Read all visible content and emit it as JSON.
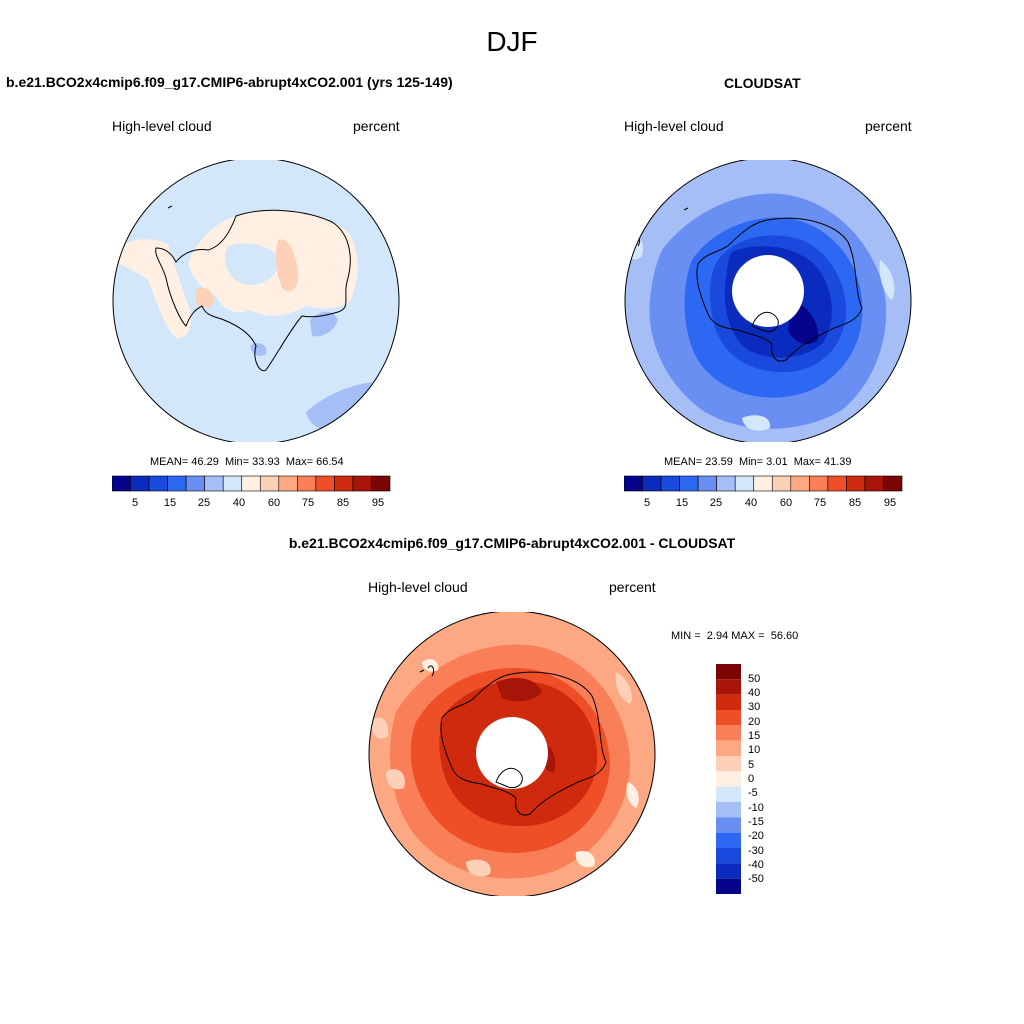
{
  "season": "DJF",
  "colors": {
    "abs_scale": [
      "#04058a",
      "#0b2bbe",
      "#1a49dd",
      "#2d68f2",
      "#6a8ff3",
      "#a5bff6",
      "#d3e7fb",
      "#fff0e3",
      "#fdd0b8",
      "#fba883",
      "#f97f59",
      "#ef4f27",
      "#cf2a0d",
      "#a71509",
      "#7a0503"
    ],
    "diff_scale": [
      "#04058a",
      "#0b2bbe",
      "#1a49dd",
      "#2d68f2",
      "#6a8ff3",
      "#a5bff6",
      "#d3e7fb",
      "#fff0e3",
      "#fdd0b8",
      "#fba883",
      "#f97f59",
      "#ef4f27",
      "#cf2a0d",
      "#a71509",
      "#7a0503"
    ]
  },
  "panels": {
    "model": {
      "title": "b.e21.BCO2x4cmip6.f09_g17.CMIP6-abrupt4xCO2.001 (yrs 125-149)",
      "left_label": "High-level cloud",
      "right_label": "percent",
      "mean_label": "MEAN=",
      "mean": "46.29",
      "min_label": "Min=",
      "min": "33.93",
      "max_label": "Max=",
      "max": "66.54",
      "colorbar_ticks": [
        "5",
        "15",
        "25",
        "40",
        "60",
        "75",
        "85",
        "95"
      ]
    },
    "obs": {
      "title": "CLOUDSAT",
      "left_label": "High-level cloud",
      "right_label": "percent",
      "mean_label": "MEAN=",
      "mean": "23.59",
      "min_label": "Min=",
      "min": "3.01",
      "max_label": "Max=",
      "max": "41.39",
      "colorbar_ticks": [
        "5",
        "15",
        "25",
        "40",
        "60",
        "75",
        "85",
        "95"
      ]
    },
    "diff": {
      "title": "b.e21.BCO2x4cmip6.f09_g17.CMIP6-abrupt4xCO2.001 - CLOUDSAT",
      "left_label": "High-level cloud",
      "right_label": "percent",
      "min_label": "MIN =",
      "min": "2.94",
      "max_label": "MAX =",
      "max": "56.60",
      "colorbar_ticks": [
        "50",
        "40",
        "30",
        "20",
        "15",
        "10",
        "5",
        "0",
        "-5",
        "-10",
        "-15",
        "-20",
        "-30",
        "-40",
        "-50"
      ]
    }
  }
}
